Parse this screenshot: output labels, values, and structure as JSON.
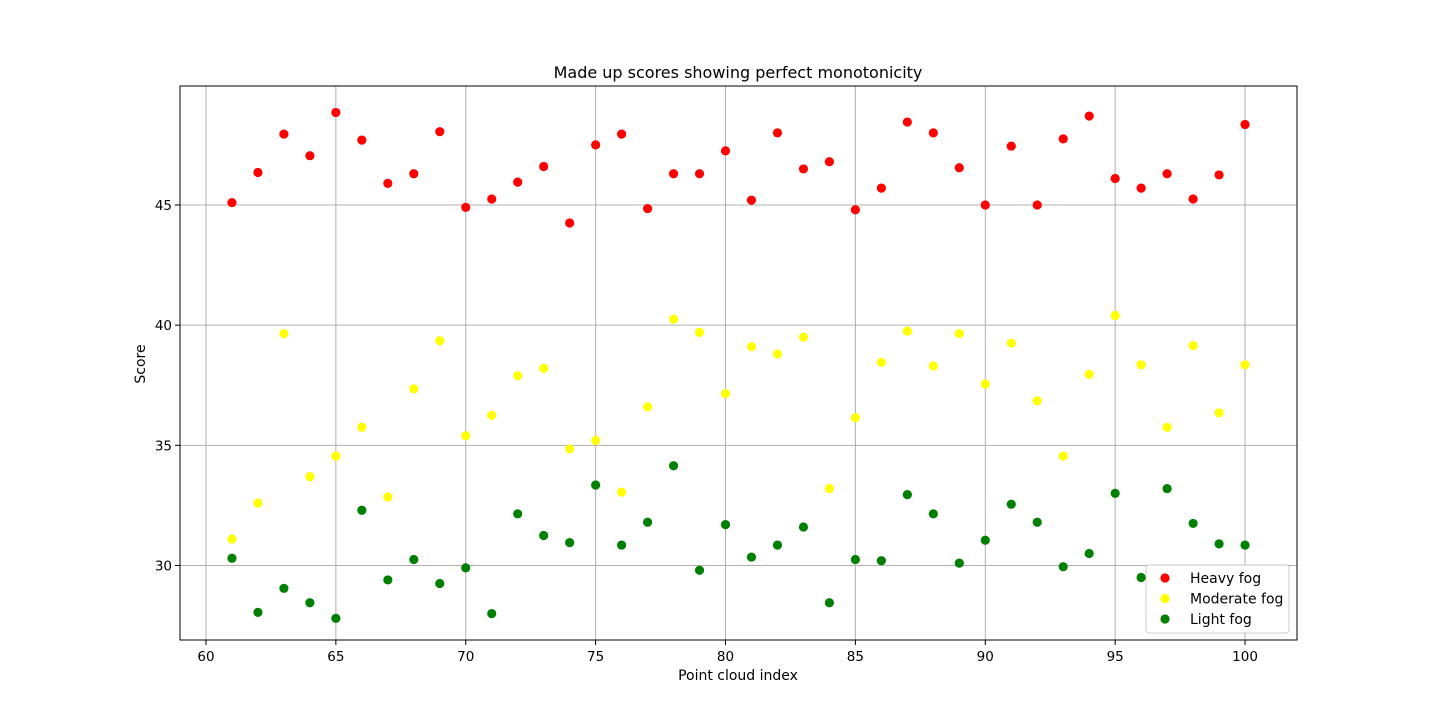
{
  "chart_data": {
    "type": "scatter",
    "title": "Made up scores showing perfect monotonicity",
    "xlabel": "Point cloud index",
    "ylabel": "Score",
    "xlim": [
      59,
      102
    ],
    "ylim": [
      26.9,
      49.95
    ],
    "xticks": [
      60,
      65,
      70,
      75,
      80,
      85,
      90,
      95,
      100
    ],
    "yticks": [
      30,
      35,
      40,
      45
    ],
    "grid": true,
    "legend_position": "lower-right",
    "x": [
      61,
      62,
      63,
      64,
      65,
      66,
      67,
      68,
      69,
      70,
      71,
      72,
      73,
      74,
      75,
      76,
      77,
      78,
      79,
      80,
      81,
      82,
      83,
      84,
      85,
      86,
      87,
      88,
      89,
      90,
      91,
      92,
      93,
      94,
      95,
      96,
      97,
      98,
      99,
      100
    ],
    "series": [
      {
        "name": "Heavy fog",
        "color": "#ff0000",
        "values": [
          45.1,
          46.35,
          47.95,
          47.05,
          48.85,
          47.7,
          45.9,
          46.3,
          48.05,
          44.9,
          45.25,
          45.95,
          46.6,
          44.25,
          47.5,
          47.95,
          44.85,
          46.3,
          46.3,
          47.25,
          45.2,
          48.0,
          46.5,
          46.8,
          44.8,
          45.7,
          48.45,
          48.0,
          46.55,
          45.0,
          47.45,
          45.0,
          47.75,
          48.7,
          46.1,
          45.7,
          46.3,
          45.25,
          46.25,
          48.35
        ]
      },
      {
        "name": "Moderate fog",
        "color": "#ffff00",
        "values": [
          31.1,
          32.6,
          39.65,
          33.7,
          34.55,
          35.75,
          32.85,
          37.35,
          39.35,
          35.4,
          36.25,
          37.9,
          38.2,
          34.85,
          35.2,
          33.05,
          36.6,
          40.25,
          39.7,
          37.15,
          39.1,
          38.8,
          39.5,
          33.2,
          36.15,
          38.45,
          39.75,
          38.3,
          39.65,
          37.55,
          39.25,
          36.85,
          34.55,
          37.95,
          40.4,
          38.35,
          35.75,
          39.15,
          36.35,
          38.35
        ]
      },
      {
        "name": "Light fog",
        "color": "#008000",
        "values": [
          30.3,
          28.05,
          29.05,
          28.45,
          27.8,
          32.3,
          29.4,
          30.25,
          29.25,
          29.9,
          28.0,
          32.15,
          31.25,
          30.95,
          33.35,
          30.85,
          31.8,
          34.15,
          29.8,
          31.7,
          30.35,
          30.85,
          31.6,
          28.45,
          30.25,
          30.2,
          32.95,
          32.15,
          30.1,
          31.05,
          32.55,
          31.8,
          29.95,
          30.5,
          33.0,
          29.5,
          33.2,
          31.75,
          30.9,
          30.85
        ]
      }
    ]
  }
}
